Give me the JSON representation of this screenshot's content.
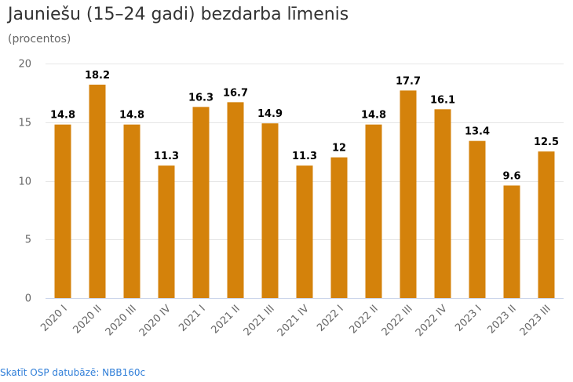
{
  "chart_data": {
    "type": "bar",
    "title": "Jauniešu (15–24 gadi) bezdarba līmenis",
    "subtitle": "(procentos)",
    "categories": [
      "2020 I",
      "2020 II",
      "2020 III",
      "2020 IV",
      "2021 I",
      "2021 II",
      "2021 III",
      "2021 IV",
      "2022 I",
      "2022 II",
      "2022 III",
      "2022 IV",
      "2023 I",
      "2023 II",
      "2023 III"
    ],
    "values": [
      14.8,
      18.2,
      14.8,
      11.3,
      16.3,
      16.7,
      14.9,
      11.3,
      12,
      14.8,
      17.7,
      16.1,
      13.4,
      9.6,
      12.5
    ],
    "ylim": [
      0,
      20
    ],
    "yticks": [
      0,
      5,
      10,
      15,
      20
    ],
    "grid": true,
    "legend": false,
    "bar_color": "#d4820b"
  },
  "source_link": "Skatīt OSP datubāzē: NBB160c"
}
